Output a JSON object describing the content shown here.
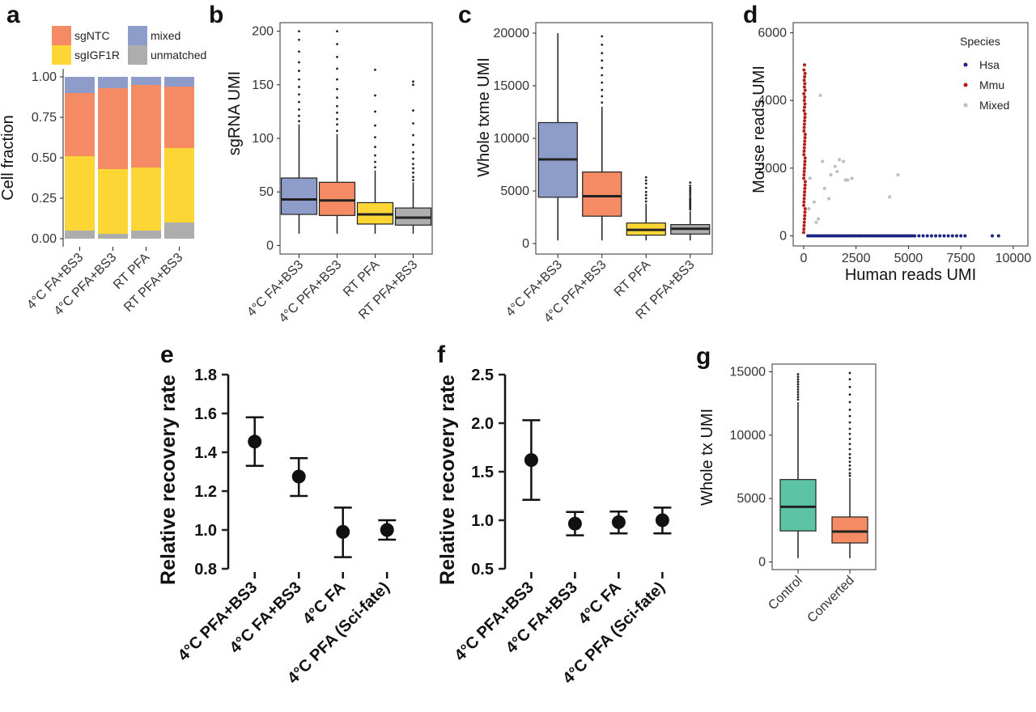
{
  "chart_data": [
    {
      "panel": "a",
      "type": "bar",
      "stacked": true,
      "categories": [
        "4°C FA+BS3",
        "4°C PFA+BS3",
        "RT PFA",
        "RT PFA+BS3"
      ],
      "series": [
        {
          "name": "unmatched",
          "color": "#ADADAD",
          "values": [
            0.05,
            0.03,
            0.05,
            0.1
          ]
        },
        {
          "name": "sgIGF1R",
          "color": "#FCD634",
          "values": [
            0.46,
            0.4,
            0.39,
            0.46
          ]
        },
        {
          "name": "sgNTC",
          "color": "#F58B65",
          "values": [
            0.39,
            0.5,
            0.51,
            0.38
          ]
        },
        {
          "name": "mixed",
          "color": "#8E9CCA",
          "values": [
            0.1,
            0.07,
            0.05,
            0.06
          ]
        }
      ],
      "legend_order": [
        "sgNTC",
        "mixed",
        "sgIGF1R",
        "unmatched"
      ],
      "title": "",
      "xlabel": "",
      "ylabel": "Cell fraction",
      "ylim": [
        0,
        1.0
      ],
      "yticks": [
        "0.00",
        "0.25",
        "0.50",
        "0.75",
        "1.00"
      ]
    },
    {
      "panel": "b",
      "type": "box",
      "categories": [
        "4°C FA+BS3",
        "4°C PFA+BS3",
        "RT PFA",
        "RT PFA+BS3"
      ],
      "colors": [
        "#8E9CCA",
        "#F58B65",
        "#FCD634",
        "#ADADAD"
      ],
      "boxes": [
        {
          "min": 11,
          "q1": 29,
          "median": 43,
          "q3": 63,
          "max": 113,
          "outliers": [
            116,
            121,
            127,
            134,
            141,
            148,
            155,
            163,
            171,
            181,
            192,
            200
          ]
        },
        {
          "min": 11,
          "q1": 28,
          "median": 42,
          "q3": 59,
          "max": 104,
          "outliers": [
            107,
            113,
            118,
            124,
            130,
            138,
            146,
            155,
            165,
            176,
            188,
            200
          ]
        },
        {
          "min": 11,
          "q1": 20,
          "median": 29,
          "q3": 40,
          "max": 70,
          "outliers": [
            73,
            78,
            84,
            92,
            101,
            112,
            125,
            140,
            164
          ]
        },
        {
          "min": 11,
          "q1": 19,
          "median": 26,
          "q3": 35,
          "max": 59,
          "outliers": [
            61,
            64,
            68,
            72,
            76,
            81,
            87,
            94,
            103,
            114,
            126,
            150,
            153
          ]
        }
      ],
      "title": "",
      "xlabel": "",
      "ylabel": "sgRNA UMI",
      "ylim": [
        -8,
        208
      ],
      "yticks": [
        0,
        50,
        100,
        150,
        200
      ]
    },
    {
      "panel": "c",
      "type": "box",
      "categories": [
        "4°C FA+BS3",
        "4°C PFA+BS3",
        "RT PFA",
        "RT PFA+BS3"
      ],
      "colors": [
        "#8E9CCA",
        "#F58B65",
        "#FCD634",
        "#ADADAD"
      ],
      "boxes": [
        {
          "min": 300,
          "q1": 4400,
          "median": 8000,
          "q3": 11500,
          "max": 20000,
          "outliers": []
        },
        {
          "min": 300,
          "q1": 2600,
          "median": 4500,
          "q3": 6800,
          "max": 13000,
          "outliers": [
            13400,
            14000,
            14600,
            15300,
            16000,
            16700,
            17400,
            18100,
            18900,
            19700
          ]
        },
        {
          "min": 300,
          "q1": 800,
          "median": 1300,
          "q3": 1950,
          "max": 3800,
          "outliers": [
            4000,
            4300,
            4600,
            4900,
            5300,
            5700,
            6000,
            6300
          ]
        },
        {
          "min": 300,
          "q1": 900,
          "median": 1400,
          "q3": 1800,
          "max": 3100,
          "outliers": [
            3250,
            3400,
            3550,
            3700,
            3850,
            4000,
            4150,
            4300,
            4500,
            4700,
            4900,
            5100,
            5300,
            5500,
            5800
          ]
        }
      ],
      "title": "",
      "xlabel": "",
      "ylabel": "Whole txme UMI",
      "ylim": [
        -1000,
        21000
      ],
      "yticks": [
        0,
        5000,
        10000,
        15000,
        20000
      ]
    },
    {
      "panel": "d",
      "type": "scatter",
      "series": [
        {
          "name": "Hsa",
          "color": "#1A237E",
          "x": [
            200,
            300,
            400,
            500,
            600,
            700,
            800,
            900,
            1000,
            1100,
            1200,
            1300,
            1400,
            1500,
            1600,
            1700,
            1800,
            1900,
            2000,
            2100,
            2200,
            2300,
            2400,
            2500,
            2600,
            2700,
            2800,
            2900,
            3000,
            3100,
            3200,
            3300,
            3400,
            3500,
            3600,
            3700,
            3800,
            3900,
            4000,
            4100,
            4200,
            4300,
            4400,
            4500,
            4600,
            4700,
            4800,
            4900,
            5000,
            5100,
            5200,
            5300,
            5500,
            5700,
            5900,
            6100,
            6300,
            6500,
            6700,
            6900,
            7100,
            7300,
            7500,
            7700,
            9000,
            9300
          ],
          "y": [
            0,
            0,
            0,
            0,
            0,
            0,
            0,
            0,
            0,
            0,
            0,
            0,
            0,
            0,
            0,
            0,
            0,
            0,
            0,
            0,
            0,
            0,
            0,
            0,
            0,
            0,
            0,
            0,
            0,
            0,
            0,
            0,
            0,
            0,
            0,
            0,
            0,
            0,
            0,
            0,
            0,
            0,
            0,
            0,
            0,
            0,
            0,
            0,
            0,
            0,
            0,
            0,
            0,
            0,
            0,
            0,
            0,
            0,
            0,
            0,
            0,
            0,
            0,
            0,
            0,
            0
          ]
        },
        {
          "name": "Mmu",
          "color": "#B71C1C",
          "x": [
            0,
            10,
            20,
            30,
            40,
            50,
            60,
            70,
            5,
            15,
            25,
            35,
            45,
            55,
            65,
            75,
            8,
            18,
            28,
            38,
            48,
            58,
            68,
            12,
            22,
            32,
            42,
            52,
            62,
            72,
            16,
            26,
            36,
            46,
            56,
            66,
            20,
            40,
            60,
            30,
            50,
            10,
            70,
            35,
            55,
            25,
            45,
            65,
            15,
            40
          ],
          "y": [
            100,
            200,
            300,
            400,
            500,
            600,
            700,
            800,
            900,
            1000,
            1100,
            1200,
            1300,
            1400,
            1500,
            1600,
            1700,
            1800,
            1900,
            2000,
            2100,
            2200,
            2300,
            2400,
            2500,
            2600,
            2700,
            2800,
            2900,
            3000,
            3100,
            3200,
            3300,
            3400,
            3500,
            3600,
            3700,
            3800,
            3900,
            4000,
            4100,
            4200,
            4300,
            4400,
            4500,
            4600,
            4700,
            4800,
            4900,
            5050
          ]
        },
        {
          "name": "Mixed",
          "color": "#BDBDBD",
          "x": [
            300,
            500,
            600,
            700,
            800,
            900,
            1200,
            1300,
            1500,
            1600,
            1700,
            1900,
            2000,
            2100,
            2300,
            4100,
            4500,
            250,
            1000
          ],
          "y": [
            1700,
            1000,
            400,
            500,
            4150,
            2200,
            1100,
            1800,
            2050,
            1900,
            2250,
            2200,
            1650,
            1650,
            1700,
            1150,
            1800,
            800,
            1400
          ]
        }
      ],
      "title": "",
      "legend_title": "Species",
      "xlabel": "Human reads UMI",
      "ylabel": "Mouse reads UMI",
      "xlim": [
        -500,
        10700
      ],
      "ylim": [
        -300,
        6300
      ],
      "xticks": [
        0,
        2500,
        5000,
        7500,
        10000
      ],
      "yticks": [
        0,
        2000,
        4000,
        6000
      ]
    },
    {
      "panel": "e",
      "type": "errorbar",
      "categories": [
        "4°C PFA+BS3",
        "4°C FA+BS3",
        "4°C FA",
        "4°C PFA (Sci-fate)"
      ],
      "means": [
        1.455,
        1.275,
        0.99,
        1.0
      ],
      "lower": [
        1.33,
        1.175,
        0.86,
        0.95
      ],
      "upper": [
        1.58,
        1.37,
        1.115,
        1.05
      ],
      "title": "",
      "xlabel": "",
      "ylabel": "Relative recovery rate",
      "ylim": [
        0.8,
        1.8
      ],
      "yticks": [
        "0.8",
        "1.0",
        "1.2",
        "1.4",
        "1.6",
        "1.8"
      ]
    },
    {
      "panel": "f",
      "type": "errorbar",
      "categories": [
        "4°C PFA+BS3",
        "4°C FA+BS3",
        "4°C FA",
        "4°C PFA (Sci-fate)"
      ],
      "means": [
        1.62,
        0.965,
        0.98,
        1.0
      ],
      "lower": [
        1.21,
        0.845,
        0.865,
        0.865
      ],
      "upper": [
        2.03,
        1.085,
        1.09,
        1.13
      ],
      "title": "",
      "xlabel": "",
      "ylabel": "Relative recovery rate",
      "ylim": [
        0.5,
        2.5
      ],
      "yticks": [
        "0.5",
        "1.0",
        "1.5",
        "2.0",
        "2.5"
      ]
    },
    {
      "panel": "g",
      "type": "box",
      "categories": [
        "Control",
        "Converted"
      ],
      "colors": [
        "#5CC4A5",
        "#F58B65"
      ],
      "boxes": [
        {
          "min": 300,
          "q1": 2450,
          "median": 4350,
          "q3": 6500,
          "max": 12600,
          "outliers": [
            12800,
            13000,
            13200,
            13400,
            13600,
            13800,
            14000,
            14200,
            14400,
            14600,
            14800
          ]
        },
        {
          "min": 300,
          "q1": 1500,
          "median": 2400,
          "q3": 3550,
          "max": 6600,
          "outliers": [
            6800,
            7000,
            7300,
            7600,
            7900,
            8200,
            8500,
            8900,
            9300,
            9700,
            10100,
            10500,
            11000,
            11500,
            12000,
            12600,
            13200,
            13800,
            14400,
            14900
          ]
        }
      ],
      "title": "",
      "xlabel": "",
      "ylabel": "Whole tx UMI",
      "ylim": [
        -600,
        15600
      ],
      "yticks": [
        0,
        5000,
        10000,
        15000
      ]
    }
  ],
  "panel_labels": [
    "a",
    "b",
    "c",
    "d",
    "e",
    "f",
    "g"
  ]
}
